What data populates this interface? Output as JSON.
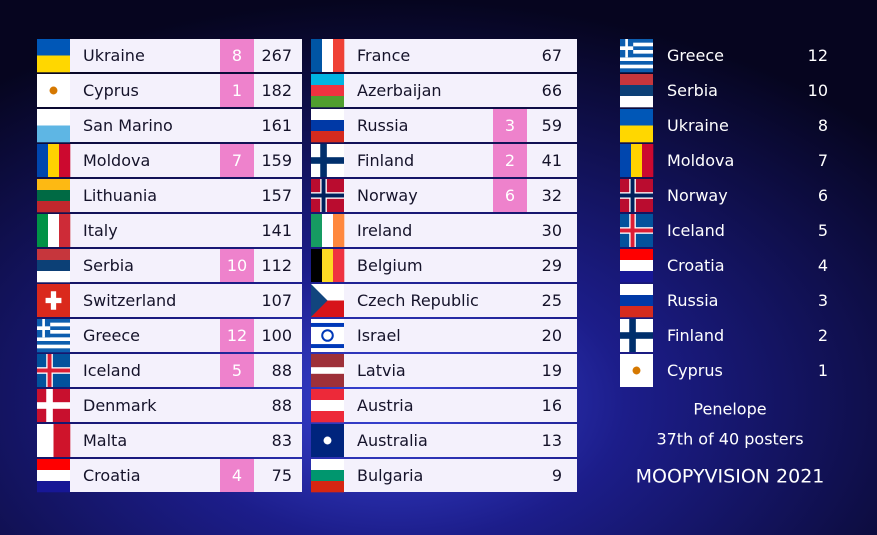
{
  "scoreboard": {
    "left": [
      {
        "country": "Ukraine",
        "points": 8,
        "total": 267
      },
      {
        "country": "Cyprus",
        "points": 1,
        "total": 182
      },
      {
        "country": "San Marino",
        "points": null,
        "total": 161
      },
      {
        "country": "Moldova",
        "points": 7,
        "total": 159
      },
      {
        "country": "Lithuania",
        "points": null,
        "total": 157
      },
      {
        "country": "Italy",
        "points": null,
        "total": 141
      },
      {
        "country": "Serbia",
        "points": 10,
        "total": 112
      },
      {
        "country": "Switzerland",
        "points": null,
        "total": 107
      },
      {
        "country": "Greece",
        "points": 12,
        "total": 100
      },
      {
        "country": "Iceland",
        "points": 5,
        "total": 88
      },
      {
        "country": "Denmark",
        "points": null,
        "total": 88
      },
      {
        "country": "Malta",
        "points": null,
        "total": 83
      },
      {
        "country": "Croatia",
        "points": 4,
        "total": 75
      }
    ],
    "middle": [
      {
        "country": "France",
        "points": null,
        "total": 67
      },
      {
        "country": "Azerbaijan",
        "points": null,
        "total": 66
      },
      {
        "country": "Russia",
        "points": 3,
        "total": 59
      },
      {
        "country": "Finland",
        "points": 2,
        "total": 41
      },
      {
        "country": "Norway",
        "points": 6,
        "total": 32
      },
      {
        "country": "Ireland",
        "points": null,
        "total": 30
      },
      {
        "country": "Belgium",
        "points": null,
        "total": 29
      },
      {
        "country": "Czech Republic",
        "points": null,
        "total": 25
      },
      {
        "country": "Israel",
        "points": null,
        "total": 20
      },
      {
        "country": "Latvia",
        "points": null,
        "total": 19
      },
      {
        "country": "Austria",
        "points": null,
        "total": 16
      },
      {
        "country": "Australia",
        "points": null,
        "total": 13
      },
      {
        "country": "Bulgaria",
        "points": null,
        "total": 9
      }
    ]
  },
  "votes": [
    {
      "country": "Greece",
      "points": 12
    },
    {
      "country": "Serbia",
      "points": 10
    },
    {
      "country": "Ukraine",
      "points": 8
    },
    {
      "country": "Moldova",
      "points": 7
    },
    {
      "country": "Norway",
      "points": 6
    },
    {
      "country": "Iceland",
      "points": 5
    },
    {
      "country": "Croatia",
      "points": 4
    },
    {
      "country": "Russia",
      "points": 3
    },
    {
      "country": "Finland",
      "points": 2
    },
    {
      "country": "Cyprus",
      "points": 1
    }
  ],
  "footer": {
    "voter": "Penelope",
    "rank": "37th of 40 posters",
    "brand": "MOOPYVISION 2021"
  }
}
